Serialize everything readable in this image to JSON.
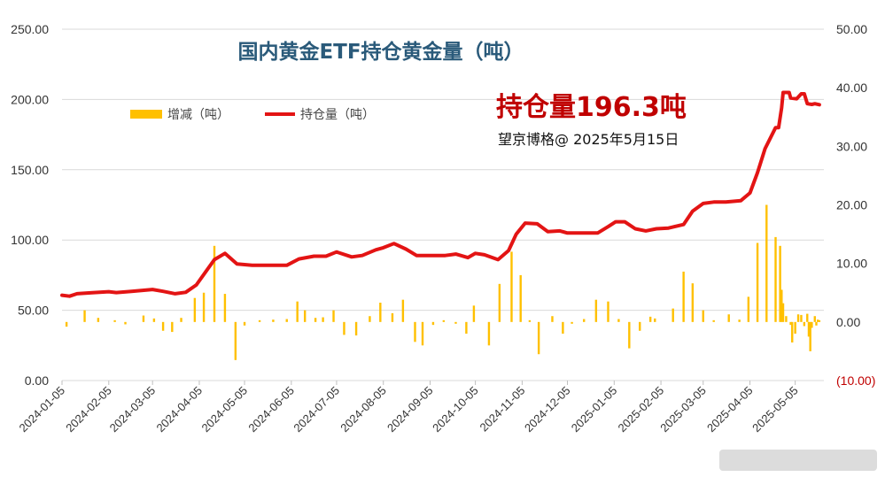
{
  "chart_data": {
    "type": "bar+line",
    "title": "国内黄金ETF持仓黄金量（吨）",
    "highlight_label": "持仓量196.3吨",
    "credit": "望京博格@ 2025年5月15日",
    "legend": {
      "placement": "top-left",
      "bar_label": "增减（吨）",
      "line_label": "持仓量（吨）"
    },
    "colors": {
      "bar": "#ffc000",
      "line": "#e31414",
      "highlight": "#c00000",
      "grid": "#d9d9d9",
      "title": "#2a5a7a"
    },
    "y_left": {
      "ticks": [
        "0.00",
        "50.00",
        "100.00",
        "150.00",
        "200.00",
        "250.00"
      ],
      "range": [
        0,
        250
      ]
    },
    "y_right": {
      "ticks": [
        "(10.00)",
        "0.00",
        "10.00",
        "20.00",
        "30.00",
        "40.00",
        "50.00"
      ],
      "range": [
        -10,
        50
      ]
    },
    "x_ticks": [
      "2024-01-05",
      "2024-02-05",
      "2024-03-05",
      "2024-04-05",
      "2024-05-05",
      "2024-06-05",
      "2024-07-05",
      "2024-08-05",
      "2024-09-05",
      "2024-10-05",
      "2024-11-05",
      "2024-12-05",
      "2025-01-05",
      "2025-02-05",
      "2025-03-05",
      "2025-04-05",
      "2025-05-05"
    ],
    "grid": true,
    "holdings_series": {
      "name": "持仓量（吨）",
      "points": [
        [
          "2024-01-05",
          60.7
        ],
        [
          "2024-01-10",
          60.0
        ],
        [
          "2024-01-15",
          61.8
        ],
        [
          "2024-01-25",
          62.5
        ],
        [
          "2024-02-05",
          63.2
        ],
        [
          "2024-02-10",
          62.6
        ],
        [
          "2024-02-20",
          63.5
        ],
        [
          "2024-03-05",
          64.8
        ],
        [
          "2024-03-12",
          63.5
        ],
        [
          "2024-03-20",
          61.8
        ],
        [
          "2024-03-27",
          62.8
        ],
        [
          "2024-04-03",
          68.0
        ],
        [
          "2024-04-09",
          77.0
        ],
        [
          "2024-04-15",
          86.0
        ],
        [
          "2024-04-22",
          90.5
        ],
        [
          "2024-04-30",
          83.0
        ],
        [
          "2024-05-10",
          82.0
        ],
        [
          "2024-05-20",
          82.0
        ],
        [
          "2024-06-02",
          82.0
        ],
        [
          "2024-06-10",
          86.5
        ],
        [
          "2024-06-20",
          88.5
        ],
        [
          "2024-06-28",
          88.5
        ],
        [
          "2024-07-05",
          91.5
        ],
        [
          "2024-07-15",
          88.0
        ],
        [
          "2024-07-22",
          89.0
        ],
        [
          "2024-07-31",
          93.0
        ],
        [
          "2024-08-05",
          94.5
        ],
        [
          "2024-08-12",
          97.5
        ],
        [
          "2024-08-20",
          93.5
        ],
        [
          "2024-08-27",
          89.0
        ],
        [
          "2024-09-05",
          89.0
        ],
        [
          "2024-09-15",
          89.0
        ],
        [
          "2024-09-22",
          90.0
        ],
        [
          "2024-09-30",
          87.5
        ],
        [
          "2024-10-05",
          90.5
        ],
        [
          "2024-10-11",
          89.5
        ],
        [
          "2024-10-20",
          86.0
        ],
        [
          "2024-10-27",
          92.5
        ],
        [
          "2024-11-01",
          104.0
        ],
        [
          "2024-11-07",
          112.0
        ],
        [
          "2024-11-15",
          111.5
        ],
        [
          "2024-11-22",
          106.0
        ],
        [
          "2024-11-30",
          106.5
        ],
        [
          "2024-12-05",
          105.0
        ],
        [
          "2024-12-15",
          105.0
        ],
        [
          "2024-12-25",
          105.0
        ],
        [
          "2025-01-01",
          109.5
        ],
        [
          "2025-01-06",
          113.0
        ],
        [
          "2025-01-12",
          113.0
        ],
        [
          "2025-01-19",
          108.0
        ],
        [
          "2025-01-26",
          106.5
        ],
        [
          "2025-02-02",
          108.0
        ],
        [
          "2025-02-10",
          108.5
        ],
        [
          "2025-02-20",
          111.0
        ],
        [
          "2025-02-26",
          120.5
        ],
        [
          "2025-03-05",
          126.0
        ],
        [
          "2025-03-12",
          127.0
        ],
        [
          "2025-03-20",
          127.0
        ],
        [
          "2025-03-30",
          128.0
        ],
        [
          "2025-04-05",
          133.5
        ],
        [
          "2025-04-10",
          148.0
        ],
        [
          "2025-04-15",
          165.0
        ],
        [
          "2025-04-22",
          180.0
        ],
        [
          "2025-04-24",
          180.0
        ],
        [
          "2025-04-26",
          194.0
        ],
        [
          "2025-04-27",
          205.0
        ],
        [
          "2025-05-01",
          205.0
        ],
        [
          "2025-05-02",
          201.0
        ],
        [
          "2025-05-06",
          200.5
        ],
        [
          "2025-05-09",
          204.0
        ],
        [
          "2025-05-11",
          204.0
        ],
        [
          "2025-05-13",
          197.0
        ],
        [
          "2025-05-16",
          196.5
        ],
        [
          "2025-05-18",
          197.0
        ],
        [
          "2025-05-21",
          196.3
        ]
      ]
    },
    "change_series": {
      "name": "增减（吨）",
      "points": [
        [
          "2024-01-08",
          -0.8
        ],
        [
          "2024-01-20",
          2.0
        ],
        [
          "2024-01-29",
          0.7
        ],
        [
          "2024-02-09",
          0.3
        ],
        [
          "2024-02-16",
          -0.4
        ],
        [
          "2024-02-28",
          1.1
        ],
        [
          "2024-03-06",
          0.6
        ],
        [
          "2024-03-12",
          -1.5
        ],
        [
          "2024-03-18",
          -1.7
        ],
        [
          "2024-03-24",
          0.7
        ],
        [
          "2024-04-02",
          4.1
        ],
        [
          "2024-04-08",
          5.0
        ],
        [
          "2024-04-15",
          13.0
        ],
        [
          "2024-04-22",
          4.8
        ],
        [
          "2024-04-29",
          -6.5
        ],
        [
          "2024-05-05",
          -0.6
        ],
        [
          "2024-05-15",
          0.3
        ],
        [
          "2024-05-24",
          0.4
        ],
        [
          "2024-06-02",
          0.5
        ],
        [
          "2024-06-09",
          3.5
        ],
        [
          "2024-06-14",
          2.0
        ],
        [
          "2024-06-21",
          0.7
        ],
        [
          "2024-06-26",
          0.8
        ],
        [
          "2024-07-03",
          2.0
        ],
        [
          "2024-07-10",
          -2.2
        ],
        [
          "2024-07-18",
          -2.3
        ],
        [
          "2024-07-27",
          1.0
        ],
        [
          "2024-08-03",
          3.3
        ],
        [
          "2024-08-11",
          1.5
        ],
        [
          "2024-08-18",
          3.8
        ],
        [
          "2024-08-26",
          -3.4
        ],
        [
          "2024-08-31",
          -4.0
        ],
        [
          "2024-09-07",
          -0.5
        ],
        [
          "2024-09-14",
          0.3
        ],
        [
          "2024-09-22",
          -0.3
        ],
        [
          "2024-09-29",
          -2.0
        ],
        [
          "2024-10-04",
          2.8
        ],
        [
          "2024-10-14",
          -4.0
        ],
        [
          "2024-10-21",
          6.5
        ],
        [
          "2024-10-29",
          12.0
        ],
        [
          "2024-11-04",
          8.0
        ],
        [
          "2024-11-10",
          0.3
        ],
        [
          "2024-11-16",
          -5.5
        ],
        [
          "2024-11-25",
          1.0
        ],
        [
          "2024-12-02",
          -2.0
        ],
        [
          "2024-12-08",
          -0.3
        ],
        [
          "2024-12-16",
          0.5
        ],
        [
          "2024-12-24",
          3.8
        ],
        [
          "2025-01-01",
          3.5
        ],
        [
          "2025-01-08",
          0.5
        ],
        [
          "2025-01-15",
          -4.5
        ],
        [
          "2025-01-22",
          -1.5
        ],
        [
          "2025-01-29",
          0.9
        ],
        [
          "2025-02-01",
          0.6
        ],
        [
          "2025-02-13",
          2.3
        ],
        [
          "2025-02-20",
          8.6
        ],
        [
          "2025-02-26",
          6.6
        ],
        [
          "2025-03-05",
          2.0
        ],
        [
          "2025-03-12",
          0.3
        ],
        [
          "2025-03-22",
          1.3
        ],
        [
          "2025-03-29",
          0.4
        ],
        [
          "2025-04-04",
          4.3
        ],
        [
          "2025-04-10",
          13.5
        ],
        [
          "2025-04-16",
          20.0
        ],
        [
          "2025-04-22",
          14.5
        ],
        [
          "2025-04-25",
          13.0
        ],
        [
          "2025-04-26",
          5.5
        ],
        [
          "2025-04-27",
          3.2
        ],
        [
          "2025-04-29",
          1.0
        ],
        [
          "2025-05-02",
          -0.5
        ],
        [
          "2025-05-03",
          -3.5
        ],
        [
          "2025-05-05",
          -2.0
        ],
        [
          "2025-05-07",
          1.3
        ],
        [
          "2025-05-09",
          1.2
        ],
        [
          "2025-05-11",
          -0.7
        ],
        [
          "2025-05-13",
          1.4
        ],
        [
          "2025-05-14",
          -2.5
        ],
        [
          "2025-05-15",
          -5.0
        ],
        [
          "2025-05-16",
          -1.0
        ],
        [
          "2025-05-18",
          1.0
        ],
        [
          "2025-05-19",
          -0.6
        ],
        [
          "2025-05-20",
          0.4
        ],
        [
          "2025-05-21",
          0.3
        ]
      ]
    }
  }
}
